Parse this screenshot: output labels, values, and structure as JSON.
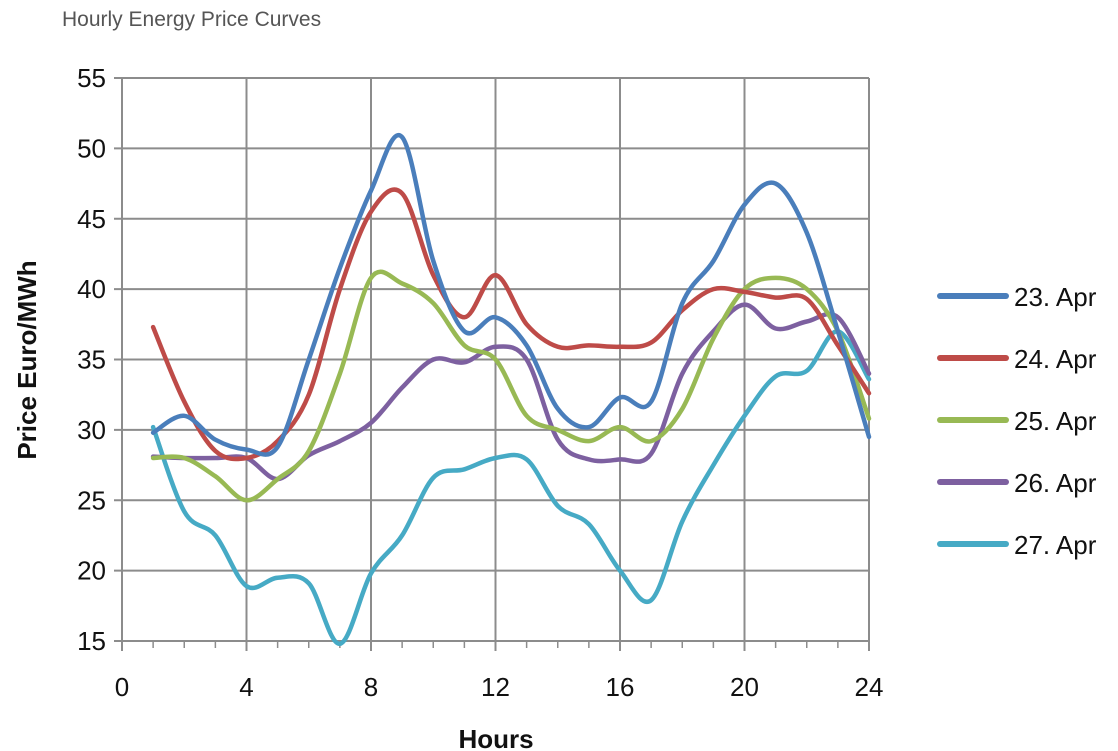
{
  "page_title": "Hourly Energy Price Curves",
  "chart_data": {
    "type": "line",
    "title": "Hourly Energy Price Curves",
    "xlabel": "Hours",
    "ylabel": "Price Euro/MWh",
    "xlim": [
      0,
      24
    ],
    "ylim": [
      15,
      55
    ],
    "x_ticks": [
      0,
      4,
      8,
      12,
      16,
      20,
      24
    ],
    "y_ticks": [
      15,
      20,
      25,
      30,
      35,
      40,
      45,
      50,
      55
    ],
    "grid": true,
    "legend_position": "right",
    "x": [
      1,
      2,
      3,
      4,
      5,
      6,
      7,
      8,
      9,
      10,
      11,
      12,
      13,
      14,
      15,
      16,
      17,
      18,
      19,
      20,
      21,
      22,
      23,
      24
    ],
    "series": [
      {
        "name": "23. Apr",
        "color": "#4a7ebb",
        "values": [
          29.8,
          31.0,
          29.3,
          28.6,
          28.8,
          35.0,
          41.5,
          47.0,
          50.8,
          42.0,
          37.0,
          38.0,
          36.0,
          31.5,
          30.2,
          32.3,
          32.0,
          39.0,
          42.0,
          46.0,
          47.5,
          44.0,
          37.0,
          29.5
        ]
      },
      {
        "name": "24. Apr",
        "color": "#be4b48",
        "values": [
          37.3,
          32.0,
          28.5,
          28.0,
          29.2,
          32.5,
          40.0,
          45.5,
          46.8,
          41.0,
          38.0,
          41.0,
          37.5,
          35.9,
          36.0,
          35.9,
          36.2,
          38.5,
          40.0,
          39.8,
          39.4,
          39.3,
          36.0,
          32.6
        ]
      },
      {
        "name": "25. Apr",
        "color": "#98b954",
        "values": [
          28.0,
          28.0,
          26.7,
          25.0,
          26.5,
          28.5,
          34.0,
          40.8,
          40.4,
          39.0,
          36.0,
          35.0,
          31.0,
          30.0,
          29.2,
          30.2,
          29.2,
          31.5,
          36.5,
          40.0,
          40.8,
          40.0,
          37.0,
          30.8
        ]
      },
      {
        "name": "26. Apr",
        "color": "#7d60a0",
        "values": [
          28.1,
          28.0,
          28.0,
          28.0,
          26.5,
          28.2,
          29.2,
          30.5,
          33.0,
          35.0,
          34.8,
          35.9,
          35.0,
          29.3,
          27.9,
          27.9,
          28.3,
          34.0,
          37.0,
          38.9,
          37.2,
          37.7,
          38.0,
          34.0
        ]
      },
      {
        "name": "27. Apr",
        "color": "#46aac5",
        "values": [
          30.2,
          24.2,
          22.5,
          18.9,
          19.5,
          19.1,
          14.8,
          19.8,
          22.5,
          26.6,
          27.2,
          28.0,
          27.9,
          24.6,
          23.3,
          20.0,
          17.9,
          23.5,
          27.5,
          31.0,
          33.8,
          34.2,
          37.0,
          33.6
        ]
      }
    ]
  }
}
